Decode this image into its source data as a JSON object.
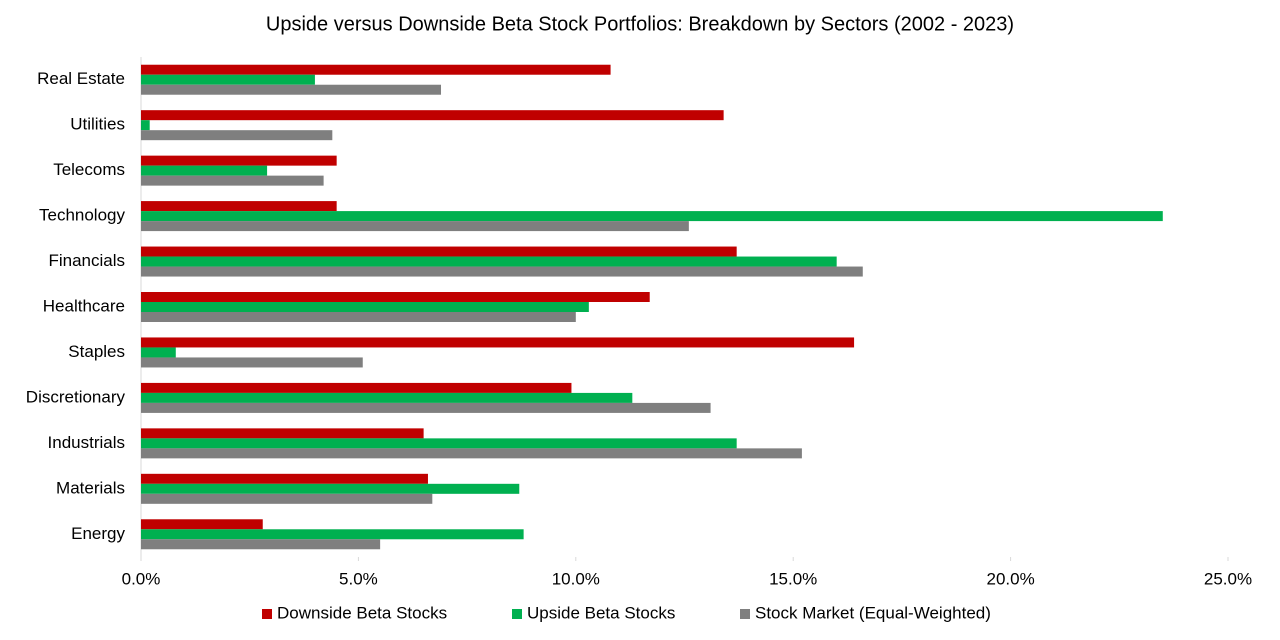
{
  "chart_data": {
    "type": "hbar",
    "title": "Upside versus Downside Beta Stock Portfolios: Breakdown by Sectors (2002 - 2023)",
    "categories": [
      "Real Estate",
      "Utilities",
      "Telecoms",
      "Technology",
      "Financials",
      "Healthcare",
      "Staples",
      "Discretionary",
      "Industrials",
      "Materials",
      "Energy"
    ],
    "series": [
      {
        "name": "Downside Beta Stocks",
        "color": "#c00000",
        "values": [
          10.8,
          13.4,
          4.5,
          4.5,
          13.7,
          11.7,
          16.4,
          9.9,
          6.5,
          6.6,
          2.8
        ]
      },
      {
        "name": "Upside Beta Stocks",
        "color": "#00b050",
        "values": [
          4.0,
          0.2,
          2.9,
          23.5,
          16.0,
          10.3,
          0.8,
          11.3,
          13.7,
          8.7,
          8.8
        ]
      },
      {
        "name": "Stock Market (Equal-Weighted)",
        "color": "#7f7f7f",
        "values": [
          6.9,
          4.4,
          4.2,
          12.6,
          16.6,
          10.0,
          5.1,
          13.1,
          15.2,
          6.7,
          5.5
        ]
      }
    ],
    "xlim": [
      0,
      25
    ],
    "xticks": [
      {
        "value": 0,
        "label": "0.0%"
      },
      {
        "value": 5,
        "label": "5.0%"
      },
      {
        "value": 10,
        "label": "10.0%"
      },
      {
        "value": 15,
        "label": "15.0%"
      },
      {
        "value": 20,
        "label": "20.0%"
      },
      {
        "value": 25,
        "label": "25.0%"
      }
    ],
    "legend": "bottom"
  }
}
